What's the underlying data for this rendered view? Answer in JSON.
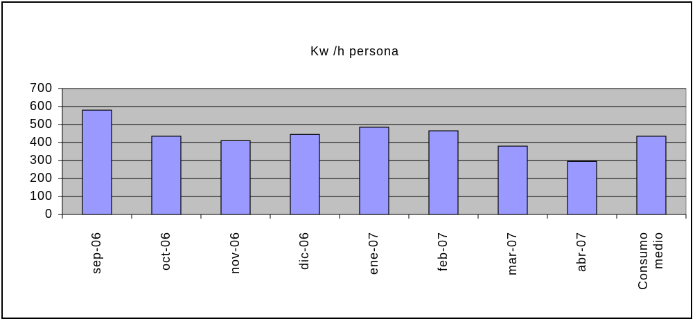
{
  "chart_data": {
    "type": "bar",
    "title": "Kw /h persona",
    "categories": [
      "sep-06",
      "oct-06",
      "nov-06",
      "dic-06",
      "ene-07",
      "feb-07",
      "mar-07",
      "abr-07",
      "Consumo medio"
    ],
    "values": [
      580,
      435,
      410,
      445,
      485,
      465,
      380,
      295,
      435
    ],
    "color": "#9999ff",
    "plot_background": "#c0c0c0",
    "ylim": [
      0,
      700
    ],
    "yticks": [
      0,
      100,
      200,
      300,
      400,
      500,
      600,
      700
    ],
    "grid": true
  }
}
